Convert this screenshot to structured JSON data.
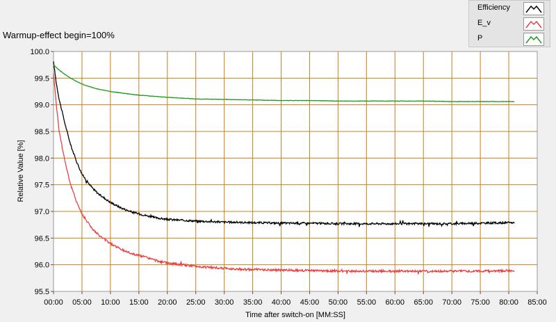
{
  "chart_data": {
    "type": "line",
    "title": "Warmup-effect begin=100%",
    "xlabel": "Time after switch-on [MM:SS]",
    "ylabel": "Relative Value [%]",
    "xlim": [
      0,
      85
    ],
    "ylim": [
      95.5,
      100.0
    ],
    "x_ticks": [
      "00:00",
      "05:00",
      "10:00",
      "15:00",
      "20:00",
      "25:00",
      "30:00",
      "35:00",
      "40:00",
      "45:00",
      "50:00",
      "55:00",
      "60:00",
      "65:00",
      "70:00",
      "75:00",
      "80:00",
      "85:00"
    ],
    "y_ticks": [
      "95.5",
      "96.0",
      "96.5",
      "97.0",
      "97.5",
      "98.0",
      "98.5",
      "99.0",
      "99.5",
      "100.0"
    ],
    "grid": true,
    "legend_position": "top-right",
    "series": [
      {
        "name": "Efficiency",
        "color": "#000000",
        "x": [
          0,
          0.5,
          1,
          2,
          3,
          4,
          5,
          6,
          7,
          8,
          10,
          12,
          14,
          16,
          18,
          20,
          25,
          30,
          35,
          40,
          45,
          50,
          55,
          60,
          65,
          70,
          75,
          81
        ],
        "y": [
          99.8,
          99.4,
          99.1,
          98.65,
          98.25,
          97.95,
          97.7,
          97.55,
          97.42,
          97.32,
          97.17,
          97.06,
          96.98,
          96.93,
          96.88,
          96.85,
          96.82,
          96.8,
          96.79,
          96.78,
          96.78,
          96.77,
          96.77,
          96.77,
          96.77,
          96.77,
          96.78,
          96.79
        ]
      },
      {
        "name": "E_v",
        "color": "#e84040",
        "x": [
          0,
          0.5,
          1,
          2,
          3,
          4,
          5,
          6,
          7,
          8,
          10,
          12,
          14,
          16,
          18,
          20,
          25,
          30,
          35,
          40,
          45,
          50,
          55,
          60,
          65,
          70,
          75,
          81
        ],
        "y": [
          99.6,
          99.0,
          98.5,
          97.95,
          97.5,
          97.2,
          96.95,
          96.8,
          96.65,
          96.55,
          96.4,
          96.28,
          96.2,
          96.15,
          96.08,
          96.03,
          95.97,
          95.93,
          95.91,
          95.9,
          95.89,
          95.88,
          95.88,
          95.88,
          95.88,
          95.88,
          95.88,
          95.89
        ]
      },
      {
        "name": "P",
        "color": "#1a9a1a",
        "x": [
          0,
          0.5,
          1,
          2,
          3,
          4,
          5,
          6,
          8,
          10,
          12,
          15,
          20,
          25,
          30,
          35,
          40,
          45,
          50,
          55,
          60,
          65,
          70,
          75,
          81
        ],
        "y": [
          99.75,
          99.7,
          99.65,
          99.57,
          99.5,
          99.44,
          99.39,
          99.35,
          99.29,
          99.25,
          99.22,
          99.18,
          99.14,
          99.11,
          99.1,
          99.09,
          99.08,
          99.08,
          99.07,
          99.07,
          99.07,
          99.07,
          99.06,
          99.06,
          99.06
        ]
      }
    ]
  }
}
